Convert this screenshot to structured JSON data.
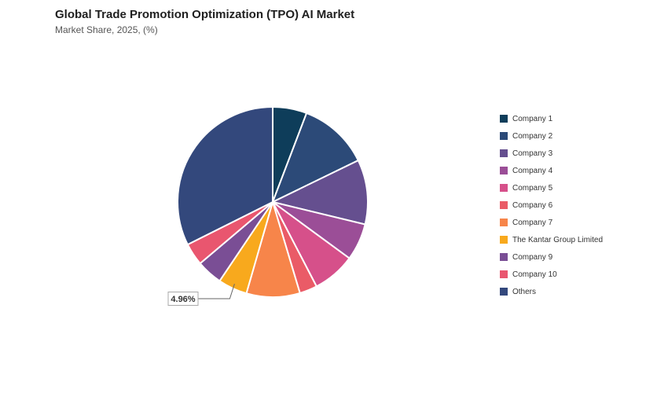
{
  "header": {
    "title": "Global Trade Promotion Optimization (TPO) AI Market",
    "subtitle": "Market Share, 2025, (%)"
  },
  "chart_data": {
    "type": "pie",
    "title": "Global Trade Promotion Optimization (TPO) AI Market",
    "subtitle": "Market Share, 2025, (%)",
    "legend_position": "right",
    "start_angle": "12 o'clock, clockwise",
    "slices": [
      {
        "label": "Company 1",
        "value": 5.8,
        "color": "#0e3d5a"
      },
      {
        "label": "Company 2",
        "value": 12.0,
        "color": "#2c4a78"
      },
      {
        "label": "Company 3",
        "value": 11.0,
        "color": "#654f8f"
      },
      {
        "label": "Company 4",
        "value": 6.3,
        "color": "#9b4e97"
      },
      {
        "label": "Company 5",
        "value": 7.3,
        "color": "#d6508a"
      },
      {
        "label": "Company 6",
        "value": 3.0,
        "color": "#ea5b67"
      },
      {
        "label": "Company 7",
        "value": 9.1,
        "color": "#f7854a"
      },
      {
        "label": "The Kantar Group Limited",
        "value": 4.96,
        "color": "#f8a91d"
      },
      {
        "label": "Company 9",
        "value": 4.4,
        "color": "#7a4e95"
      },
      {
        "label": "Company 10",
        "value": 3.8,
        "color": "#e9566f"
      },
      {
        "label": "Others",
        "value": 32.4,
        "color": "#33487c"
      }
    ],
    "data_labels": [
      {
        "slice": "The Kantar Group Limited",
        "text": "4.96%"
      }
    ]
  }
}
